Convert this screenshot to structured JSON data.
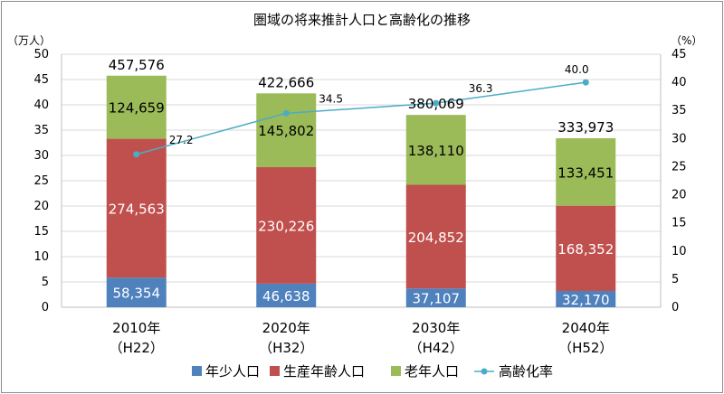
{
  "chart_data": {
    "type": "bar",
    "stacked": true,
    "title": "圏域の将来推計人口と高齢化の推移",
    "y_left_unit": "（万人）",
    "y_right_unit": "（%）",
    "y_left_lim": [
      0,
      50
    ],
    "y_left_ticks": [
      "0",
      "5",
      "10",
      "15",
      "20",
      "25",
      "30",
      "35",
      "40",
      "45",
      "50"
    ],
    "y_right_lim": [
      0,
      45
    ],
    "y_right_ticks": [
      "0",
      "5",
      "10",
      "15",
      "20",
      "25",
      "30",
      "35",
      "40",
      "45"
    ],
    "grid": true,
    "legend_position": "bottom",
    "categories": [
      {
        "year": "2010年",
        "era": "（H22）"
      },
      {
        "year": "2020年",
        "era": "（H32）"
      },
      {
        "year": "2030年",
        "era": "（H42）"
      },
      {
        "year": "2040年",
        "era": "（H52）"
      }
    ],
    "series": [
      {
        "name": "年少人口",
        "color": "#4f81bd",
        "values": [
          58354,
          46638,
          37107,
          32170
        ],
        "labels": [
          "58,354",
          "46,638",
          "37,107",
          "32,170"
        ]
      },
      {
        "name": "生産年齢人口",
        "color": "#c0504d",
        "values": [
          274563,
          230226,
          204852,
          168352
        ],
        "labels": [
          "274,563",
          "230,226",
          "204,852",
          "168,352"
        ]
      },
      {
        "name": "老年人口",
        "color": "#9bbb59",
        "values": [
          124659,
          145802,
          138110,
          133451
        ],
        "labels": [
          "124,659",
          "145,802",
          "138,110",
          "133,451"
        ]
      }
    ],
    "totals": [
      "457,576",
      "422,666",
      "380,069",
      "333,973"
    ],
    "total_values": [
      457576,
      422666,
      380069,
      333973
    ],
    "line_series": {
      "name": "高齢化率",
      "color": "#4bacc6",
      "axis": "right",
      "values": [
        27.2,
        34.5,
        36.3,
        40.0
      ],
      "labels": [
        "27.2",
        "34.5",
        "36.3",
        "40.0"
      ]
    }
  }
}
